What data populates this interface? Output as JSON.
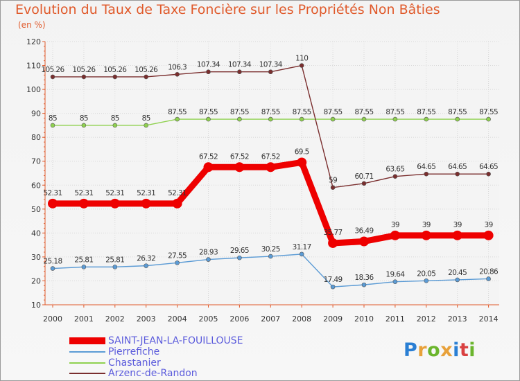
{
  "header": {
    "title": "Evolution du Taux de Taxe Foncière sur les Propriétés Non Bâties",
    "unit": "(en %)"
  },
  "logo": {
    "text": "Proxiti",
    "letters": [
      "P",
      "r",
      "o",
      "x",
      "i",
      "t",
      "i"
    ],
    "colors": [
      "#2a7fd4",
      "#e8a13a",
      "#6bb52d",
      "#e8a13a",
      "#2a7fd4",
      "#d94040",
      "#6bb52d"
    ]
  },
  "chart_data": {
    "type": "line",
    "title": "Evolution du Taux de Taxe Foncière sur les Propriétés Non Bâties",
    "ylabel": "(en %)",
    "xlabel": "",
    "x": [
      "2000",
      "2001",
      "2002",
      "2003",
      "2004",
      "2005",
      "2006",
      "2007",
      "2008",
      "2009",
      "2010",
      "2011",
      "2012",
      "2013",
      "2014"
    ],
    "ylim": [
      10,
      120
    ],
    "yticks": [
      10,
      20,
      30,
      40,
      50,
      60,
      70,
      80,
      90,
      100,
      110,
      120
    ],
    "grid": true,
    "legend_position": "bottom-left",
    "series": [
      {
        "name": "SAINT-JEAN-LA-FOUILLOUSE",
        "color": "#ee0000",
        "values": [
          52.31,
          52.31,
          52.31,
          52.31,
          52.31,
          67.52,
          67.52,
          67.52,
          69.5,
          35.77,
          36.49,
          39,
          39,
          39,
          39
        ],
        "labels": [
          "52.31",
          "52.31",
          "52.31",
          "52.31",
          "52.31",
          "67.52",
          "67.52",
          "67.52",
          "69.5",
          "35.77",
          "36.49",
          "39",
          "39",
          "39",
          "39"
        ]
      },
      {
        "name": "Pierrefiche",
        "color": "#5b9bd5",
        "values": [
          25.18,
          25.81,
          25.81,
          26.32,
          27.55,
          28.93,
          29.65,
          30.25,
          31.17,
          17.49,
          18.36,
          19.64,
          20.05,
          20.45,
          20.86
        ],
        "labels": [
          "25.18",
          "25.81",
          "25.81",
          "26.32",
          "27.55",
          "28.93",
          "29.65",
          "30.25",
          "31.17",
          "17.49",
          "18.36",
          "19.64",
          "20.05",
          "20.45",
          "20.86"
        ]
      },
      {
        "name": "Chastanier",
        "color": "#8fd14f",
        "values": [
          85,
          85,
          85,
          85,
          87.55,
          87.55,
          87.55,
          87.55,
          87.55,
          87.55,
          87.55,
          87.55,
          87.55,
          87.55,
          87.55
        ],
        "labels": [
          "85",
          "85",
          "85",
          "85",
          "87.55",
          "87.55",
          "87.55",
          "87.55",
          "87.55",
          "87.55",
          "87.55",
          "87.55",
          "87.55",
          "87.55",
          "87.55"
        ]
      },
      {
        "name": "Arzenc-de-Randon",
        "color": "#7a2e2e",
        "values": [
          105.26,
          105.26,
          105.26,
          105.26,
          106.3,
          107.34,
          107.34,
          107.34,
          110,
          59,
          60.71,
          63.65,
          64.65,
          64.65,
          64.65
        ],
        "labels": [
          "105.26",
          "105.26",
          "105.26",
          "105.26",
          "106.3",
          "107.34",
          "107.34",
          "107.34",
          "110",
          "59",
          "60.71",
          "63.65",
          "64.65",
          "64.65",
          "64.65"
        ]
      }
    ]
  }
}
